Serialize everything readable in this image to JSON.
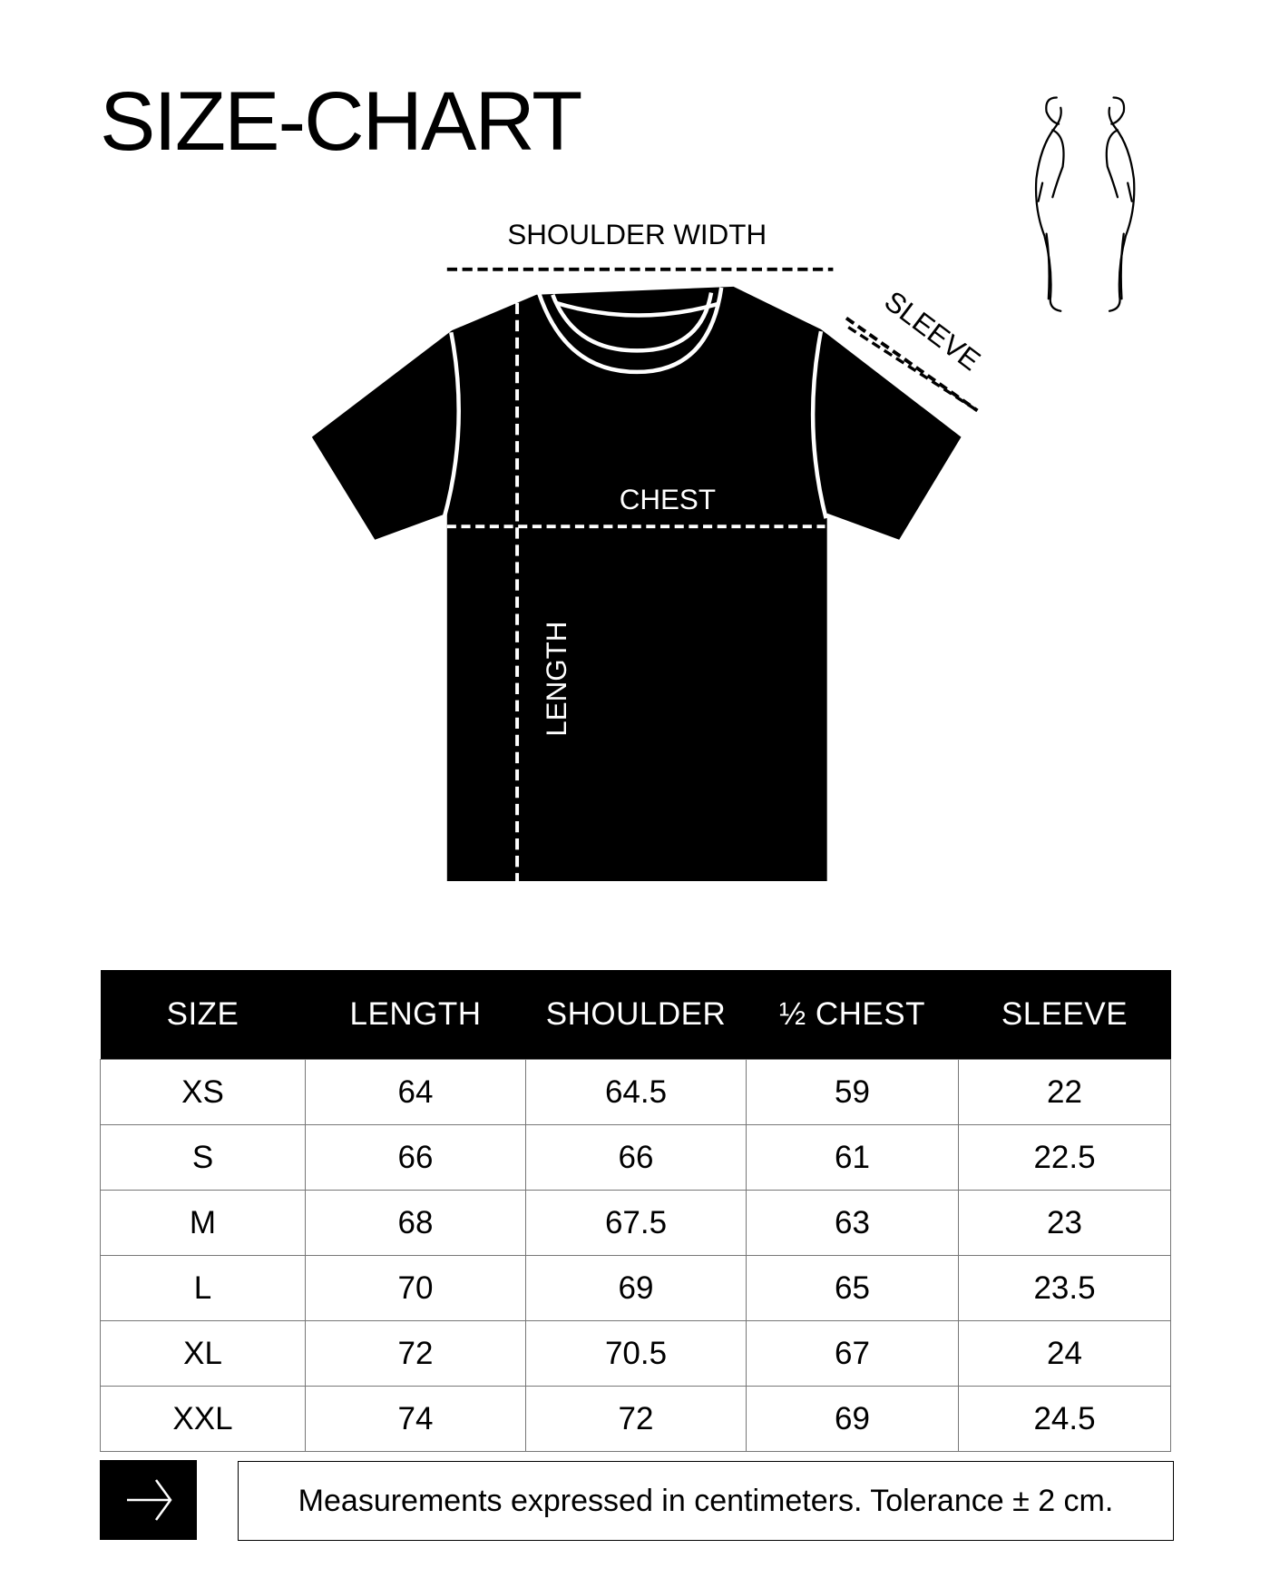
{
  "title": "SIZE-CHART",
  "diagram": {
    "shoulder_label": "SHOULDER WIDTH",
    "sleeve_label": "SLEEVE",
    "chest_label": "CHEST",
    "length_label": "LENGTH",
    "garment": "t-shirt",
    "figure_icon": "human-figure-side-views"
  },
  "table": {
    "headers": [
      "SIZE",
      "LENGTH",
      "SHOULDER",
      "½ CHEST",
      "SLEEVE"
    ],
    "rows": [
      [
        "XS",
        "64",
        "64.5",
        "59",
        "22"
      ],
      [
        "S",
        "66",
        "66",
        "61",
        "22.5"
      ],
      [
        "M",
        "68",
        "67.5",
        "63",
        "23"
      ],
      [
        "L",
        "70",
        "69",
        "65",
        "23.5"
      ],
      [
        "XL",
        "72",
        "70.5",
        "67",
        "24"
      ],
      [
        "XXL",
        "74",
        "72",
        "69",
        "24.5"
      ]
    ]
  },
  "footer": {
    "icon": "arrow-right-icon",
    "note": "Measurements expressed in centimeters. Tolerance ± 2 cm."
  }
}
